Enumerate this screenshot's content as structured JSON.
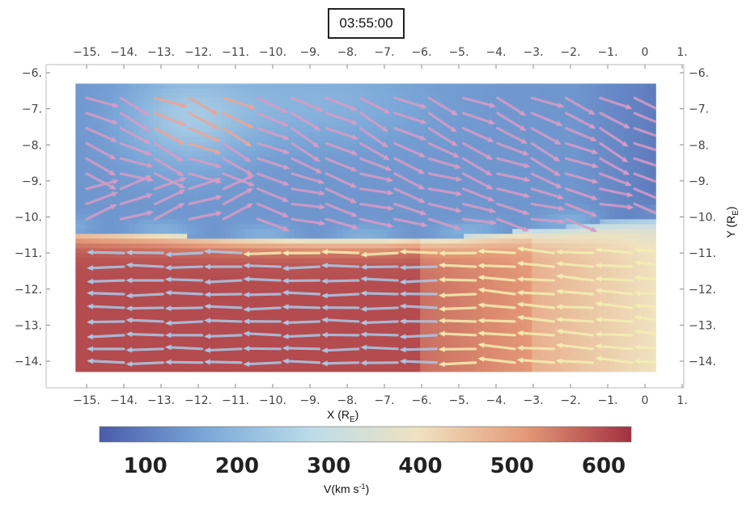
{
  "timestamp": "03:55:00",
  "chart_data": {
    "type": "vector-field-heatmap",
    "title": "",
    "xlabel": "X (R",
    "xlabel_sub": "E",
    "xlabel_tail": ")",
    "ylabel": "Y (R",
    "ylabel_sub": "E",
    "ylabel_tail": ")",
    "xlim": [
      -16.2,
      1.2
    ],
    "ylim": [
      -14.7,
      -5.8
    ],
    "x_ticks": [
      -15,
      -14,
      -13,
      -12,
      -11,
      -10,
      -9,
      -8,
      -7,
      -6,
      -5,
      -4,
      -3,
      -2,
      -1,
      0,
      1
    ],
    "x_tick_labels": [
      "-15.",
      "-14.",
      "-13.",
      "-12.",
      "-11.",
      "-10.",
      "-9.",
      "-8.",
      "-7.",
      "-6.",
      "-5.",
      "-4.",
      "-3.",
      "-2.",
      "-1.",
      "0",
      "1."
    ],
    "y_ticks": [
      -6,
      -7,
      -8,
      -9,
      -10,
      -11,
      -12,
      -13,
      -14
    ],
    "y_tick_labels": [
      "-6.",
      "-7.",
      "-8.",
      "-9.",
      "-10.",
      "-11.",
      "-12.",
      "-13.",
      "-14."
    ],
    "field_extent": {
      "x": [
        -15.3,
        0.3
      ],
      "y": [
        -14.3,
        -6.3
      ]
    },
    "boundary_y": {
      "x": [
        -15.3,
        -13,
        -11,
        -9,
        -7,
        -5,
        -4,
        -3,
        -2,
        -1,
        0.3
      ],
      "y": [
        -10.4,
        -10.5,
        -10.6,
        -10.65,
        -10.65,
        -10.55,
        -10.45,
        -10.35,
        -10.25,
        -10.1,
        -10.0
      ]
    },
    "grid": false,
    "colorbar": {
      "title": "V(km s",
      "title_sup": "-1",
      "title_tail": ")",
      "range": [
        50,
        630
      ],
      "ticks": [
        100,
        200,
        300,
        400,
        500,
        600
      ],
      "colors": [
        "#4a5bab",
        "#7aa8d8",
        "#bcdcea",
        "#efe2c0",
        "#e59a78",
        "#a33040"
      ]
    }
  }
}
